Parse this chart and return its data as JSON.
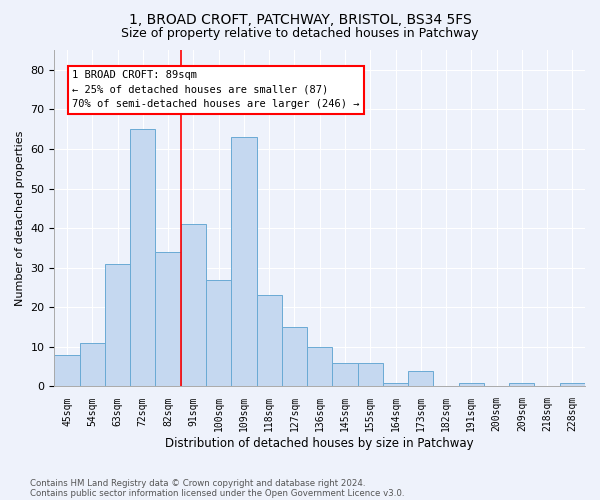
{
  "title": "1, BROAD CROFT, PATCHWAY, BRISTOL, BS34 5FS",
  "subtitle": "Size of property relative to detached houses in Patchway",
  "xlabel": "Distribution of detached houses by size in Patchway",
  "ylabel": "Number of detached properties",
  "bin_labels": [
    "45sqm",
    "54sqm",
    "63sqm",
    "72sqm",
    "82sqm",
    "91sqm",
    "100sqm",
    "109sqm",
    "118sqm",
    "127sqm",
    "136sqm",
    "145sqm",
    "155sqm",
    "164sqm",
    "173sqm",
    "182sqm",
    "191sqm",
    "200sqm",
    "209sqm",
    "218sqm",
    "228sqm"
  ],
  "bar_values": [
    8,
    11,
    31,
    65,
    34,
    41,
    27,
    63,
    23,
    15,
    10,
    6,
    6,
    1,
    4,
    0,
    1,
    0,
    1,
    0,
    1
  ],
  "bar_color": "#c5d8f0",
  "bar_edge_color": "#6aaad4",
  "ylim": [
    0,
    85
  ],
  "yticks": [
    0,
    10,
    20,
    30,
    40,
    50,
    60,
    70,
    80
  ],
  "red_line_x": 4.5,
  "annotation_title": "1 BROAD CROFT: 89sqm",
  "annotation_line1": "← 25% of detached houses are smaller (87)",
  "annotation_line2": "70% of semi-detached houses are larger (246) →",
  "footer1": "Contains HM Land Registry data © Crown copyright and database right 2024.",
  "footer2": "Contains public sector information licensed under the Open Government Licence v3.0.",
  "background_color": "#eef2fb",
  "plot_background": "#eef2fb",
  "grid_color": "#ffffff",
  "title_fontsize": 10,
  "subtitle_fontsize": 9
}
